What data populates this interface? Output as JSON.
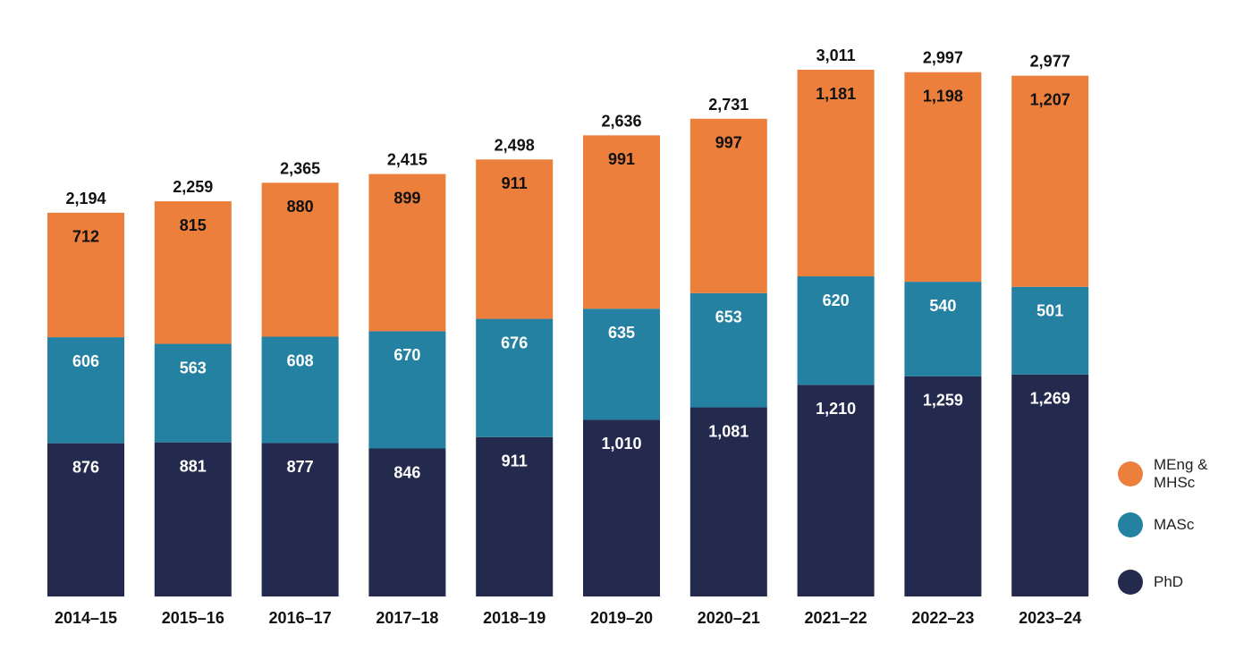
{
  "chart_data": {
    "type": "bar",
    "stacked": true,
    "categories": [
      "2014–15",
      "2015–16",
      "2016–17",
      "2017–18",
      "2018–19",
      "2019–20",
      "2020–21",
      "2021–22",
      "2022–23",
      "2023–24"
    ],
    "series": [
      {
        "name": "PhD",
        "color": "#232a4d",
        "label_color": "#ffffff",
        "values": [
          876,
          881,
          877,
          846,
          911,
          1010,
          1081,
          1210,
          1259,
          1269
        ],
        "labels": [
          "876",
          "881",
          "877",
          "846",
          "911",
          "1,010",
          "1,081",
          "1,210",
          "1,259",
          "1,269"
        ]
      },
      {
        "name": "MASc",
        "color": "#2581a1",
        "label_color": "#ffffff",
        "values": [
          606,
          563,
          608,
          670,
          676,
          635,
          653,
          620,
          540,
          501
        ],
        "labels": [
          "606",
          "563",
          "608",
          "670",
          "676",
          "635",
          "653",
          "620",
          "540",
          "501"
        ]
      },
      {
        "name": "MEng & MHSc",
        "color": "#ec7f3c",
        "label_color": "#111111",
        "values": [
          712,
          815,
          880,
          899,
          911,
          991,
          997,
          1181,
          1198,
          1207
        ],
        "labels": [
          "712",
          "815",
          "880",
          "899",
          "911",
          "991",
          "997",
          "1,181",
          "1,198",
          "1,207"
        ]
      }
    ],
    "totals": [
      2194,
      2259,
      2365,
      2415,
      2498,
      2636,
      2731,
      3011,
      2997,
      2977
    ],
    "total_labels": [
      "2,194",
      "2,259",
      "2,365",
      "2,415",
      "2,498",
      "2,636",
      "2,731",
      "3,011",
      "2,997",
      "2,977"
    ],
    "ylim": [
      0,
      3011
    ],
    "grid": false,
    "legend_position": "right",
    "legend": [
      {
        "label": "MEng & MHSc",
        "color": "#ec7f3c"
      },
      {
        "label": "MASc",
        "color": "#2581a1"
      },
      {
        "label": "PhD",
        "color": "#232a4d"
      }
    ],
    "title": "",
    "xlabel": "",
    "ylabel": ""
  }
}
